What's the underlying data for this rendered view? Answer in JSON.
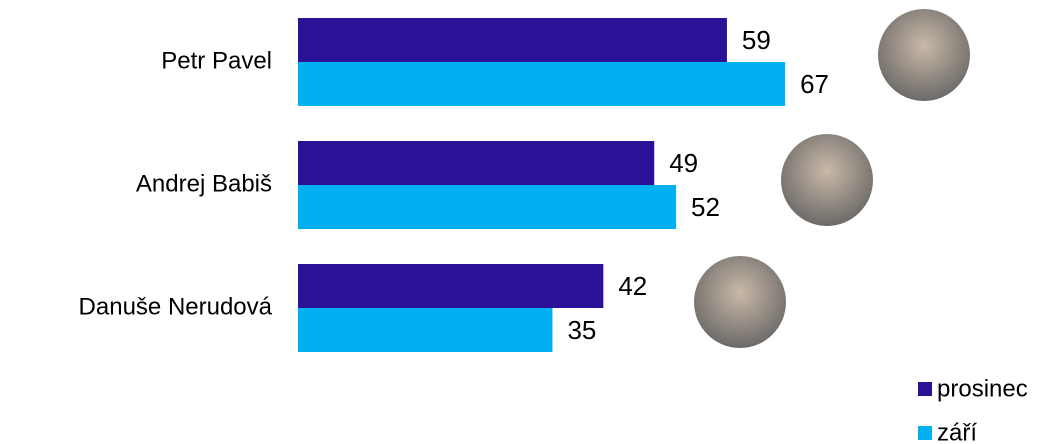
{
  "chart_data": {
    "type": "hbar",
    "categories": [
      "Petr Pavel",
      "Andrej Babiš",
      "Danuše Nerudová"
    ],
    "series": [
      {
        "name": "prosinec",
        "color": "#2a1196",
        "values": [
          59,
          49,
          42
        ]
      },
      {
        "name": "září",
        "color": "#00b0f0",
        "values": [
          67,
          52,
          35
        ]
      }
    ]
  }
}
